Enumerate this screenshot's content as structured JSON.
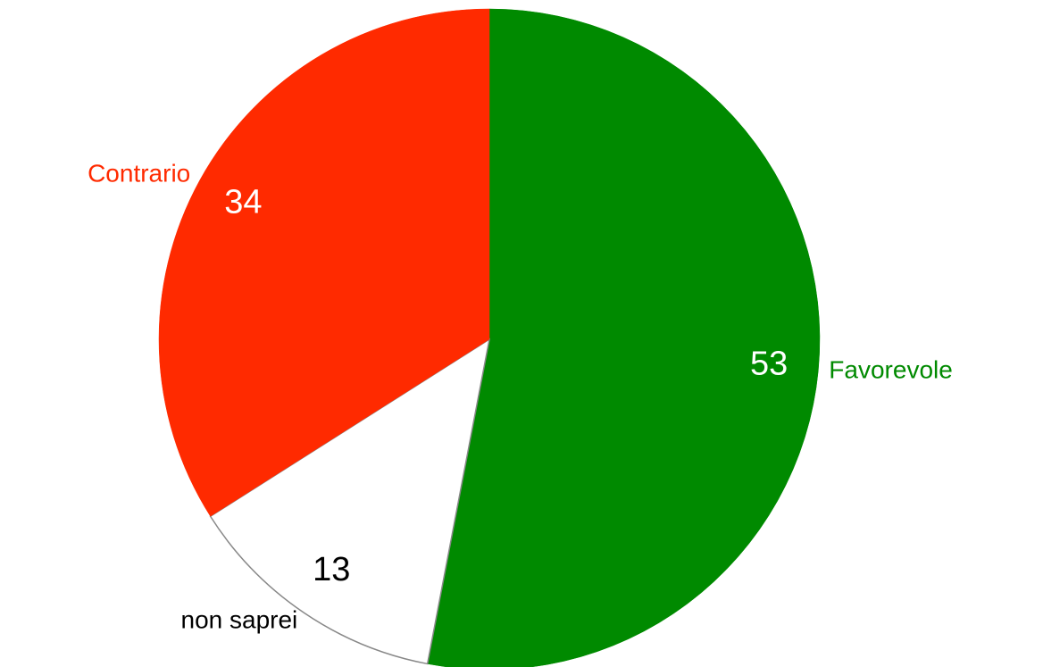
{
  "chart_data": {
    "type": "pie",
    "categories": [
      "Favorevole",
      "non saprei",
      "Contrario"
    ],
    "values": [
      53,
      13,
      34
    ],
    "colors": [
      "#008a00",
      "#ffffff",
      "#ff2a00"
    ]
  }
}
